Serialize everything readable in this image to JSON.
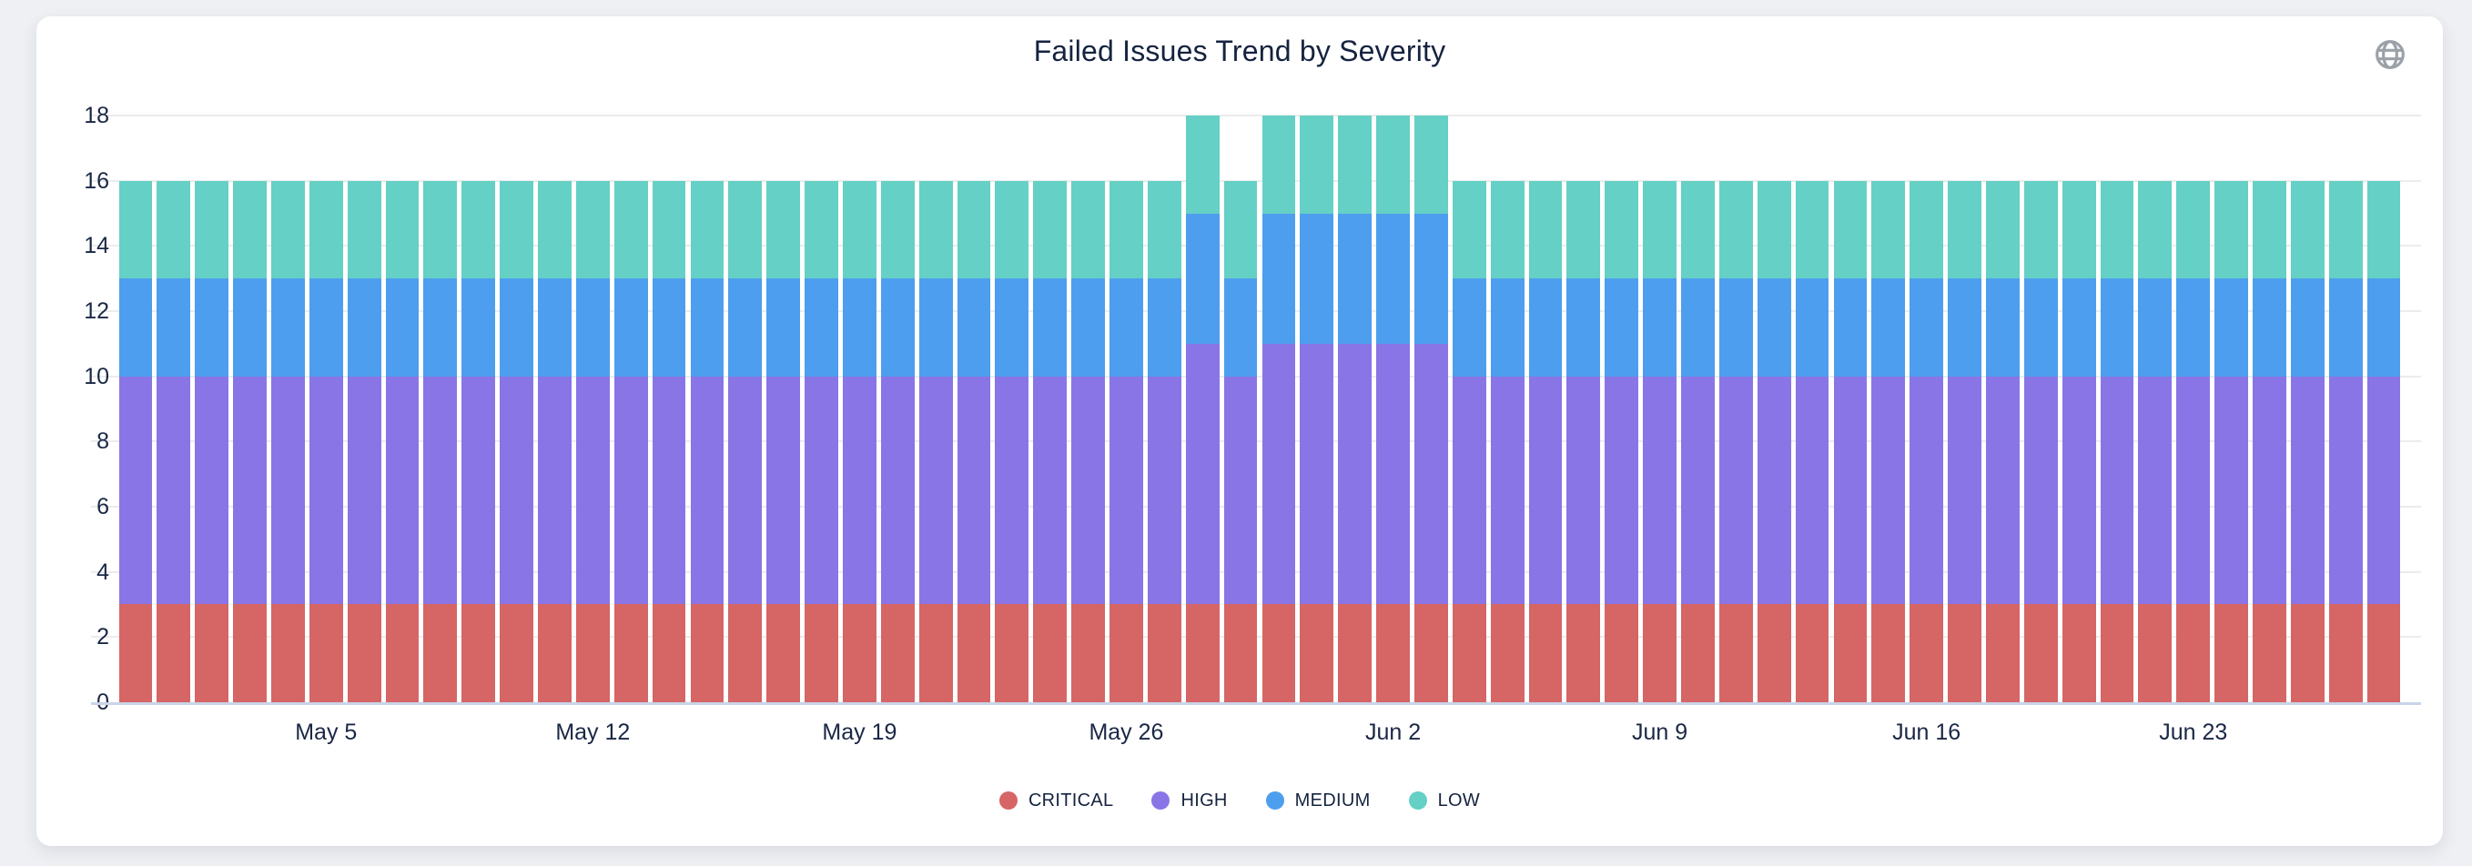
{
  "page": {
    "background": "#eef0f3"
  },
  "card": {
    "background": "#ffffff"
  },
  "header": {
    "icon_top_right": "globe-icon",
    "icon_color": "#9ba1a8"
  },
  "chart_data": {
    "type": "bar",
    "stacked": true,
    "title": "Failed Issues Trend by Severity",
    "title_color": "#15233f",
    "axis_text_color": "#1a2745",
    "gridline_color": "#ececec",
    "baseline_color": "#c9d4e8",
    "grid": true,
    "legend_position": "bottom",
    "ylim": [
      0,
      18
    ],
    "yticks": [
      0,
      2,
      4,
      6,
      8,
      10,
      12,
      14,
      16,
      18
    ],
    "xticks": [
      "May 5",
      "May 12",
      "May 19",
      "May 26",
      "Jun 2",
      "Jun 9",
      "Jun 16",
      "Jun 23"
    ],
    "x": [
      "Apr 30",
      "May 1",
      "May 2",
      "May 3",
      "May 4",
      "May 5",
      "May 6",
      "May 7",
      "May 8",
      "May 9",
      "May 10",
      "May 11",
      "May 12",
      "May 13",
      "May 14",
      "May 15",
      "May 16",
      "May 17",
      "May 18",
      "May 19",
      "May 20",
      "May 21",
      "May 22",
      "May 23",
      "May 24",
      "May 25",
      "May 26",
      "May 27",
      "May 28",
      "May 29",
      "May 30",
      "May 31",
      "Jun 1",
      "Jun 2",
      "Jun 3",
      "Jun 4",
      "Jun 5",
      "Jun 6",
      "Jun 7",
      "Jun 8",
      "Jun 9",
      "Jun 10",
      "Jun 11",
      "Jun 12",
      "Jun 13",
      "Jun 14",
      "Jun 15",
      "Jun 16",
      "Jun 17",
      "Jun 18",
      "Jun 19",
      "Jun 20",
      "Jun 21",
      "Jun 22",
      "Jun 23",
      "Jun 24",
      "Jun 25",
      "Jun 26",
      "Jun 27",
      "Jun 28"
    ],
    "series": [
      {
        "name": "CRITICAL",
        "color": "#d66565",
        "values": [
          3,
          3,
          3,
          3,
          3,
          3,
          3,
          3,
          3,
          3,
          3,
          3,
          3,
          3,
          3,
          3,
          3,
          3,
          3,
          3,
          3,
          3,
          3,
          3,
          3,
          3,
          3,
          3,
          3,
          3,
          3,
          3,
          3,
          3,
          3,
          3,
          3,
          3,
          3,
          3,
          3,
          3,
          3,
          3,
          3,
          3,
          3,
          3,
          3,
          3,
          3,
          3,
          3,
          3,
          3,
          3,
          3,
          3,
          3,
          3
        ]
      },
      {
        "name": "HIGH",
        "color": "#8a75e6",
        "values": [
          7,
          7,
          7,
          7,
          7,
          7,
          7,
          7,
          7,
          7,
          7,
          7,
          7,
          7,
          7,
          7,
          7,
          7,
          7,
          7,
          7,
          7,
          7,
          7,
          7,
          7,
          7,
          7,
          8,
          7,
          8,
          8,
          8,
          8,
          8,
          7,
          7,
          7,
          7,
          7,
          7,
          7,
          7,
          7,
          7,
          7,
          7,
          7,
          7,
          7,
          7,
          7,
          7,
          7,
          7,
          7,
          7,
          7,
          7,
          7
        ]
      },
      {
        "name": "MEDIUM",
        "color": "#4d9eee",
        "values": [
          3,
          3,
          3,
          3,
          3,
          3,
          3,
          3,
          3,
          3,
          3,
          3,
          3,
          3,
          3,
          3,
          3,
          3,
          3,
          3,
          3,
          3,
          3,
          3,
          3,
          3,
          3,
          3,
          4,
          3,
          4,
          4,
          4,
          4,
          4,
          3,
          3,
          3,
          3,
          3,
          3,
          3,
          3,
          3,
          3,
          3,
          3,
          3,
          3,
          3,
          3,
          3,
          3,
          3,
          3,
          3,
          3,
          3,
          3,
          3
        ]
      },
      {
        "name": "LOW",
        "color": "#65d0c5",
        "values": [
          3,
          3,
          3,
          3,
          3,
          3,
          3,
          3,
          3,
          3,
          3,
          3,
          3,
          3,
          3,
          3,
          3,
          3,
          3,
          3,
          3,
          3,
          3,
          3,
          3,
          3,
          3,
          3,
          3,
          3,
          3,
          3,
          3,
          3,
          3,
          3,
          3,
          3,
          3,
          3,
          3,
          3,
          3,
          3,
          3,
          3,
          3,
          3,
          3,
          3,
          3,
          3,
          3,
          3,
          3,
          3,
          3,
          3,
          3,
          3
        ]
      }
    ]
  }
}
